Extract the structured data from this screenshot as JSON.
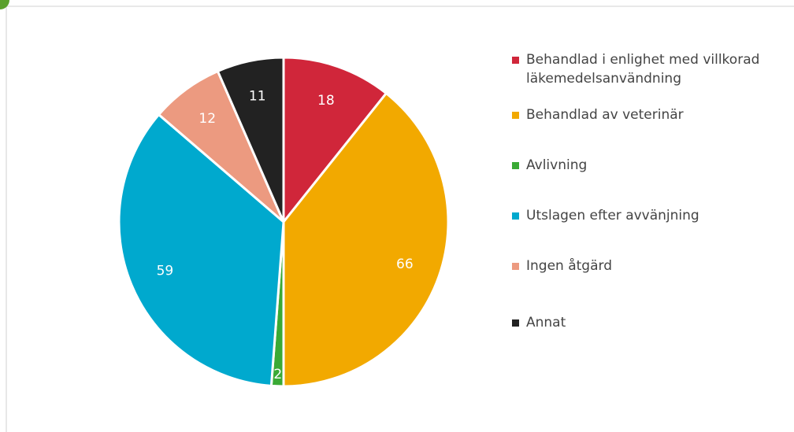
{
  "chart_data": {
    "type": "pie",
    "categories": [
      "Behandlad i enlighet med villkorad läkemedelsanvändning",
      "Behandlad av veterinär",
      "Avlivning",
      "Utslagen efter avvänjning",
      "Ingen åtgärd",
      "Annat"
    ],
    "values": [
      18,
      66,
      2,
      59,
      12,
      11
    ],
    "colors": [
      "#d0263a",
      "#f2a900",
      "#3aaa35",
      "#00a9ce",
      "#ec9a80",
      "#222222"
    ],
    "legend": "right"
  }
}
